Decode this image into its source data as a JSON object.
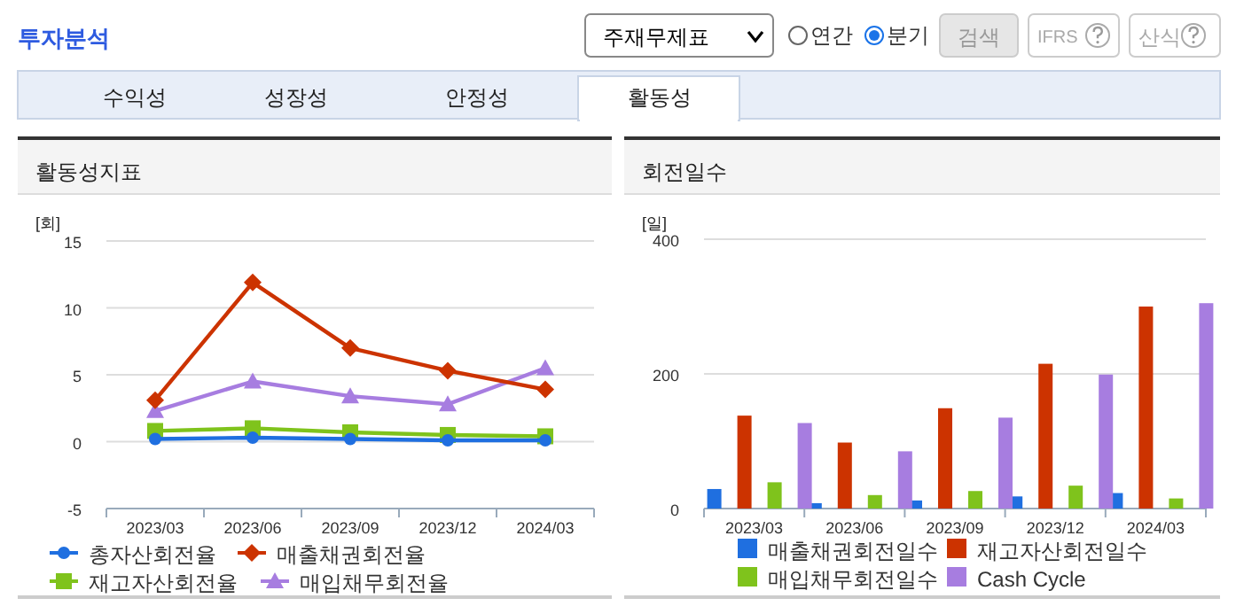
{
  "chart_data": [
    {
      "type": "line",
      "title": "활동성지표",
      "ylabel": "[회]",
      "categories": [
        "2023/03",
        "2023/06",
        "2023/09",
        "2023/12",
        "2024/03"
      ],
      "ylim": [
        -5,
        15
      ],
      "yticks": [
        -5,
        0,
        5,
        10,
        15
      ],
      "grid": "y",
      "legend": "bottom",
      "annotations": [
        "투자분석",
        "주재무제표",
        "연간",
        "분기",
        "검색",
        "IFRS",
        "산식",
        "수익성",
        "성장성",
        "안정성",
        "활동성"
      ],
      "series": [
        {
          "name": "총자산회전율",
          "color": "#1f6fe0",
          "marker": "circle",
          "values": [
            0.2,
            0.3,
            0.2,
            0.1,
            0.1
          ]
        },
        {
          "name": "매출채권회전율",
          "color": "#cc3300",
          "marker": "diamond",
          "values": [
            3.1,
            11.9,
            7.0,
            5.3,
            3.9
          ]
        },
        {
          "name": "재고자산회전율",
          "color": "#7fc31c",
          "marker": "square",
          "values": [
            0.8,
            1.0,
            0.7,
            0.5,
            0.4
          ]
        },
        {
          "name": "매입채무회전율",
          "color": "#a77de0",
          "marker": "triangle",
          "values": [
            2.3,
            4.5,
            3.4,
            2.8,
            5.5
          ]
        }
      ]
    },
    {
      "type": "bar",
      "title": "회전일수",
      "ylabel": "[일]",
      "categories": [
        "2023/03",
        "2023/06",
        "2023/09",
        "2023/12",
        "2024/03"
      ],
      "ylim": [
        0,
        400
      ],
      "yticks": [
        0,
        200,
        400
      ],
      "grid": "y",
      "legend": "bottom",
      "series": [
        {
          "name": "매출채권회전일수",
          "color": "#1f6fe0",
          "values": [
            29,
            8,
            12,
            18,
            23
          ]
        },
        {
          "name": "재고자산회전일수",
          "color": "#cc3300",
          "values": [
            138,
            98,
            149,
            215,
            300
          ]
        },
        {
          "name": "매입채무회전일수",
          "color": "#7fc31c",
          "values": [
            39,
            20,
            26,
            34,
            15
          ]
        },
        {
          "name": "Cash Cycle",
          "color": "#a77de0",
          "values": [
            127,
            85,
            135,
            199,
            305
          ]
        }
      ]
    }
  ]
}
